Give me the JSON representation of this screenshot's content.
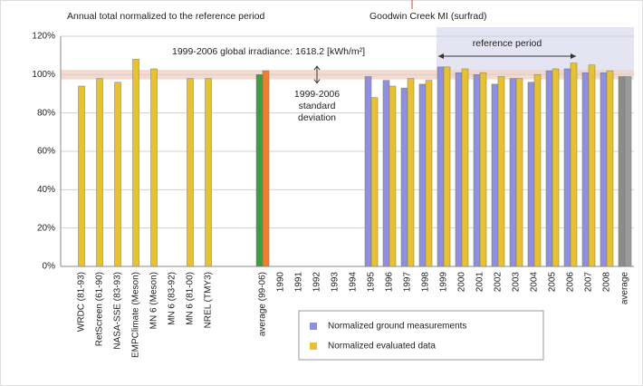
{
  "chart_data": {
    "type": "bar",
    "title": "Annual total normalized to the reference period",
    "subtitle": "Goodwin Creek MI (surfrad)",
    "annotations": {
      "irradiance": "1999-2006 global irradiance:  1618.2  [kWh/m²]",
      "std_dev": [
        "1999-2006",
        "standard",
        "deviation"
      ],
      "reference": "reference period"
    },
    "categories": [
      "WRDC (81-93)",
      "RetScreen (61-90)",
      "NASA-SSE (83-93)",
      "EMPClimate (Meson)",
      "MN 6 (Meson)",
      "MN 6 (83-92)",
      "MN 6 (81-00)",
      "NREL (TMY3)",
      null,
      null,
      "average (99-06)",
      "1990",
      "1991",
      "1992",
      "1993",
      "1994",
      "1995",
      "1996",
      "1997",
      "1998",
      "1999",
      "2000",
      "2001",
      "2002",
      "2003",
      "2004",
      "2005",
      "2006",
      "2007",
      "2008",
      "average"
    ],
    "series": [
      {
        "name": "Normalized ground measurements",
        "color": "#8f8fe0",
        "point_colors": {
          "10": "#3e9e3e",
          "30": "#8c8c8c"
        },
        "values": [
          null,
          null,
          null,
          null,
          null,
          null,
          null,
          null,
          null,
          null,
          100,
          null,
          null,
          null,
          null,
          null,
          99,
          97,
          93,
          95,
          104,
          101,
          100,
          95,
          98,
          96,
          102,
          103,
          101,
          101,
          99
        ]
      },
      {
        "name": "Normalized evaluated data",
        "color": "#e6c232",
        "point_colors": {
          "10": "#ef7f2f",
          "30": "#9a9a9a"
        },
        "values": [
          94,
          98,
          96,
          108,
          103,
          null,
          98,
          98,
          null,
          null,
          102,
          null,
          null,
          null,
          null,
          null,
          88,
          94,
          98,
          97,
          104,
          103,
          101,
          99,
          98,
          100,
          103,
          106,
          105,
          102,
          99
        ]
      }
    ],
    "std_band": [
      97.5,
      102.5
    ],
    "ylim": [
      0,
      120
    ],
    "yticks": [
      {
        "value": 0,
        "label": "0%"
      },
      {
        "value": 20,
        "label": "20%"
      },
      {
        "value": 40,
        "label": "40%"
      },
      {
        "value": 60,
        "label": "60%"
      },
      {
        "value": 80,
        "label": "80%"
      },
      {
        "value": 100,
        "label": "100%"
      },
      {
        "value": 120,
        "label": "120%"
      }
    ],
    "grid": true
  }
}
